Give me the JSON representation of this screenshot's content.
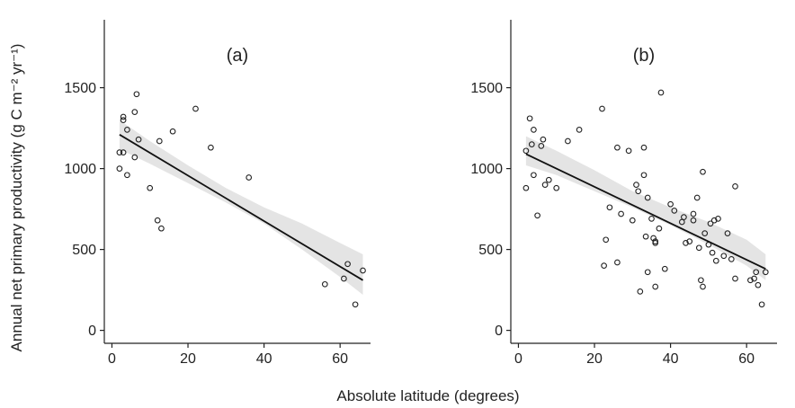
{
  "figure": {
    "ylabel": "Annual net primary productivity (g C m⁻² yr⁻¹)",
    "xlabel": "Absolute latitude (degrees)"
  },
  "chart_data": [
    {
      "type": "scatter",
      "title": "(a)",
      "xlabel": "Absolute latitude (degrees)",
      "ylabel": "Annual net primary productivity (g C m⁻² yr⁻¹)",
      "xlim": [
        -2,
        68
      ],
      "ylim": [
        -80,
        1920
      ],
      "xticks": [
        0,
        20,
        40,
        60
      ],
      "yticks": [
        0,
        500,
        1000,
        1500
      ],
      "grid": false,
      "marker": "open-circle",
      "points": [
        [
          2,
          1100
        ],
        [
          2,
          1000
        ],
        [
          3,
          1300
        ],
        [
          3,
          1320
        ],
        [
          3,
          1100
        ],
        [
          4,
          960
        ],
        [
          4,
          1240
        ],
        [
          6,
          1350
        ],
        [
          6,
          1070
        ],
        [
          6.5,
          1460
        ],
        [
          7,
          1180
        ],
        [
          10,
          880
        ],
        [
          12,
          680
        ],
        [
          12.5,
          1170
        ],
        [
          13,
          630
        ],
        [
          16,
          1230
        ],
        [
          22,
          1370
        ],
        [
          26,
          1130
        ],
        [
          36,
          945
        ],
        [
          56,
          285
        ],
        [
          61,
          320
        ],
        [
          62,
          410
        ],
        [
          64,
          160
        ],
        [
          66,
          370
        ]
      ],
      "fit": {
        "x": [
          2,
          66
        ],
        "y": [
          1210,
          310
        ],
        "color": "#111111"
      },
      "ci": {
        "x": [
          2,
          10,
          20,
          30,
          40,
          50,
          60,
          66
        ],
        "lower": [
          1120,
          1030,
          910,
          790,
          660,
          500,
          330,
          220
        ],
        "upper": [
          1300,
          1170,
          1020,
          880,
          760,
          660,
          540,
          470
        ],
        "color": "#e4e4e4"
      }
    },
    {
      "type": "scatter",
      "title": "(b)",
      "xlabel": "Absolute latitude (degrees)",
      "ylabel": "Annual net primary productivity (g C m⁻² yr⁻¹)",
      "xlim": [
        -2,
        68
      ],
      "ylim": [
        -80,
        1920
      ],
      "xticks": [
        0,
        20,
        40,
        60
      ],
      "yticks": [
        0,
        500,
        1000,
        1500
      ],
      "grid": false,
      "marker": "open-circle",
      "points": [
        [
          2,
          1110
        ],
        [
          2,
          880
        ],
        [
          3,
          1310
        ],
        [
          3.5,
          1150
        ],
        [
          4,
          960
        ],
        [
          4,
          1240
        ],
        [
          5,
          710
        ],
        [
          6,
          1140
        ],
        [
          6.5,
          1180
        ],
        [
          7,
          900
        ],
        [
          8,
          930
        ],
        [
          10,
          880
        ],
        [
          13,
          1170
        ],
        [
          16,
          1240
        ],
        [
          22,
          1370
        ],
        [
          22.5,
          400
        ],
        [
          23,
          560
        ],
        [
          24,
          760
        ],
        [
          26,
          1130
        ],
        [
          26,
          420
        ],
        [
          27,
          720
        ],
        [
          29,
          1110
        ],
        [
          30,
          680
        ],
        [
          31,
          900
        ],
        [
          31.5,
          860
        ],
        [
          32,
          240
        ],
        [
          33,
          1130
        ],
        [
          33,
          960
        ],
        [
          33.5,
          580
        ],
        [
          34,
          820
        ],
        [
          34,
          360
        ],
        [
          35,
          690
        ],
        [
          35.5,
          570
        ],
        [
          36,
          540
        ],
        [
          36,
          550
        ],
        [
          36,
          270
        ],
        [
          37,
          630
        ],
        [
          37.5,
          1470
        ],
        [
          38.5,
          380
        ],
        [
          40,
          780
        ],
        [
          41,
          740
        ],
        [
          43,
          670
        ],
        [
          43.5,
          700
        ],
        [
          44,
          540
        ],
        [
          45,
          550
        ],
        [
          46,
          720
        ],
        [
          46,
          680
        ],
        [
          47,
          820
        ],
        [
          47.5,
          510
        ],
        [
          48,
          310
        ],
        [
          48.5,
          270
        ],
        [
          48.5,
          980
        ],
        [
          49,
          600
        ],
        [
          50,
          530
        ],
        [
          50.5,
          660
        ],
        [
          51,
          480
        ],
        [
          51.5,
          680
        ],
        [
          52,
          430
        ],
        [
          52.5,
          690
        ],
        [
          54,
          460
        ],
        [
          55,
          600
        ],
        [
          56,
          440
        ],
        [
          57,
          890
        ],
        [
          57,
          320
        ],
        [
          61,
          310
        ],
        [
          62,
          320
        ],
        [
          62.5,
          360
        ],
        [
          63,
          280
        ],
        [
          64,
          160
        ],
        [
          65,
          360
        ]
      ],
      "fit": {
        "x": [
          2,
          65
        ],
        "y": [
          1090,
          380
        ],
        "color": "#111111"
      },
      "ci": {
        "x": [
          2,
          10,
          20,
          30,
          40,
          50,
          60,
          65
        ],
        "lower": [
          1020,
          960,
          860,
          760,
          650,
          530,
          400,
          310
        ],
        "upper": [
          1200,
          1110,
          990,
          860,
          760,
          670,
          560,
          470
        ],
        "color": "#e4e4e4"
      }
    }
  ]
}
